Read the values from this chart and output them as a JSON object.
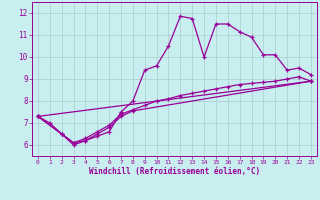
{
  "title": "",
  "xlabel": "Windchill (Refroidissement éolien,°C)",
  "background_color": "#c8eef0",
  "line_color": "#990099",
  "grid_color": "#aacccc",
  "xlim": [
    -0.5,
    23.5
  ],
  "ylim": [
    5.5,
    12.5
  ],
  "yticks": [
    6,
    7,
    8,
    9,
    10,
    11,
    12
  ],
  "xticks": [
    0,
    1,
    2,
    3,
    4,
    5,
    6,
    7,
    8,
    9,
    10,
    11,
    12,
    13,
    14,
    15,
    16,
    17,
    18,
    19,
    20,
    21,
    22,
    23
  ],
  "line1_x": [
    0,
    1,
    2,
    3,
    4,
    5,
    6,
    7,
    8,
    9,
    10,
    11,
    12,
    13,
    14,
    15,
    16,
    17,
    18,
    19,
    20,
    21,
    22,
    23
  ],
  "line1_y": [
    7.3,
    7.0,
    6.5,
    6.0,
    6.2,
    6.4,
    6.6,
    7.5,
    8.0,
    9.4,
    9.6,
    10.5,
    11.85,
    11.75,
    10.0,
    11.5,
    11.5,
    11.15,
    10.9,
    10.1,
    10.1,
    9.4,
    9.5,
    9.2
  ],
  "line2_x": [
    0,
    2,
    3,
    4,
    5,
    6,
    7,
    8,
    23
  ],
  "line2_y": [
    7.3,
    6.5,
    6.1,
    6.2,
    6.5,
    6.8,
    7.3,
    7.55,
    8.9
  ],
  "line3_x": [
    0,
    23
  ],
  "line3_y": [
    7.3,
    8.9
  ],
  "line4_x": [
    0,
    2,
    3,
    4,
    5,
    6,
    7,
    8,
    9,
    10,
    11,
    12,
    13,
    14,
    15,
    16,
    17,
    18,
    19,
    20,
    21,
    22,
    23
  ],
  "line4_y": [
    7.3,
    6.5,
    6.1,
    6.3,
    6.6,
    6.9,
    7.4,
    7.6,
    7.8,
    8.0,
    8.1,
    8.25,
    8.35,
    8.45,
    8.55,
    8.65,
    8.75,
    8.8,
    8.85,
    8.9,
    9.0,
    9.1,
    8.9
  ]
}
